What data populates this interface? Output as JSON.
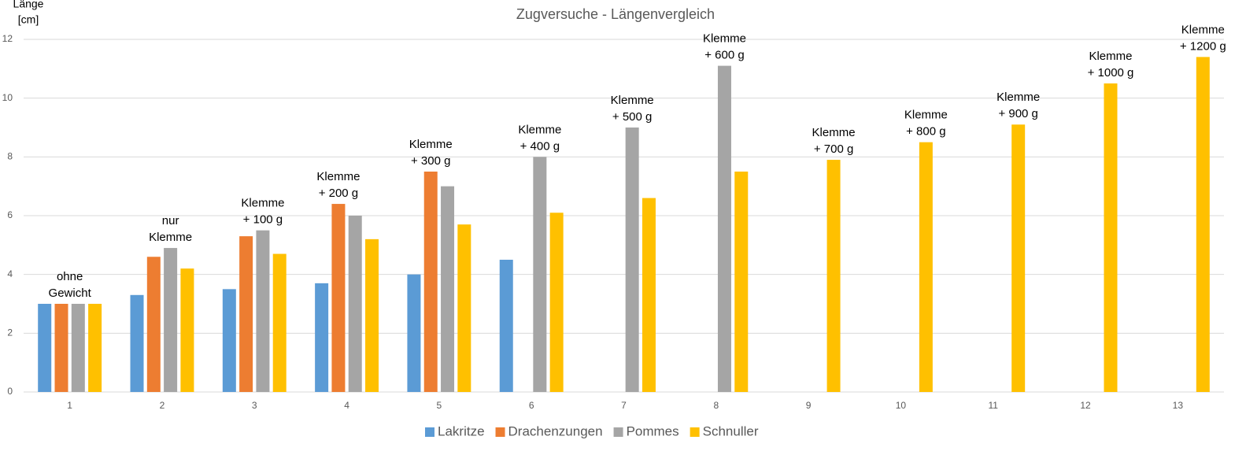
{
  "chart_data": {
    "type": "bar",
    "title": "Zugversuche  - Längenvergleich",
    "ylabel_lines": [
      "Länge",
      "[cm]"
    ],
    "categories": [
      1,
      2,
      3,
      4,
      5,
      6,
      7,
      8,
      9,
      10,
      11,
      12,
      13
    ],
    "series": [
      {
        "name": "Lakritze",
        "color": "#5b9bd5",
        "values": [
          3,
          3.3,
          3.5,
          3.7,
          4,
          4.5,
          null,
          null,
          null,
          null,
          null,
          null,
          null
        ]
      },
      {
        "name": "Drachenzungen",
        "color": "#ed7d31",
        "values": [
          3,
          4.6,
          5.3,
          6.4,
          7.5,
          null,
          null,
          null,
          null,
          null,
          null,
          null,
          null
        ]
      },
      {
        "name": "Pommes",
        "color": "#a5a5a5",
        "values": [
          3,
          4.9,
          5.5,
          6,
          7,
          8,
          9,
          11.1,
          null,
          null,
          null,
          null,
          null
        ]
      },
      {
        "name": "Schnuller",
        "color": "#ffc000",
        "values": [
          3,
          4.2,
          4.7,
          5.2,
          5.7,
          6.1,
          6.6,
          7.5,
          7.9,
          8.5,
          9.1,
          10.5,
          11.4
        ]
      }
    ],
    "annotations": [
      [
        "ohne",
        "Gewicht"
      ],
      [
        "nur",
        "Klemme"
      ],
      [
        "Klemme",
        "+ 100 g"
      ],
      [
        "Klemme",
        "+ 200 g"
      ],
      [
        "Klemme",
        "+ 300 g"
      ],
      [
        "Klemme",
        "+ 400 g"
      ],
      [
        "Klemme",
        "+ 500 g"
      ],
      [
        "Klemme",
        "+ 600 g"
      ],
      [
        "Klemme",
        "+ 700 g"
      ],
      [
        "Klemme",
        "+ 800 g"
      ],
      [
        "Klemme",
        "+ 900 g"
      ],
      [
        "Klemme",
        "+ 1000 g"
      ],
      [
        "Klemme",
        "+ 1200 g"
      ]
    ],
    "ylim": [
      0,
      12
    ],
    "yticks": [
      0,
      2,
      4,
      6,
      8,
      10,
      12
    ],
    "grid": true,
    "legend": "bottom"
  }
}
